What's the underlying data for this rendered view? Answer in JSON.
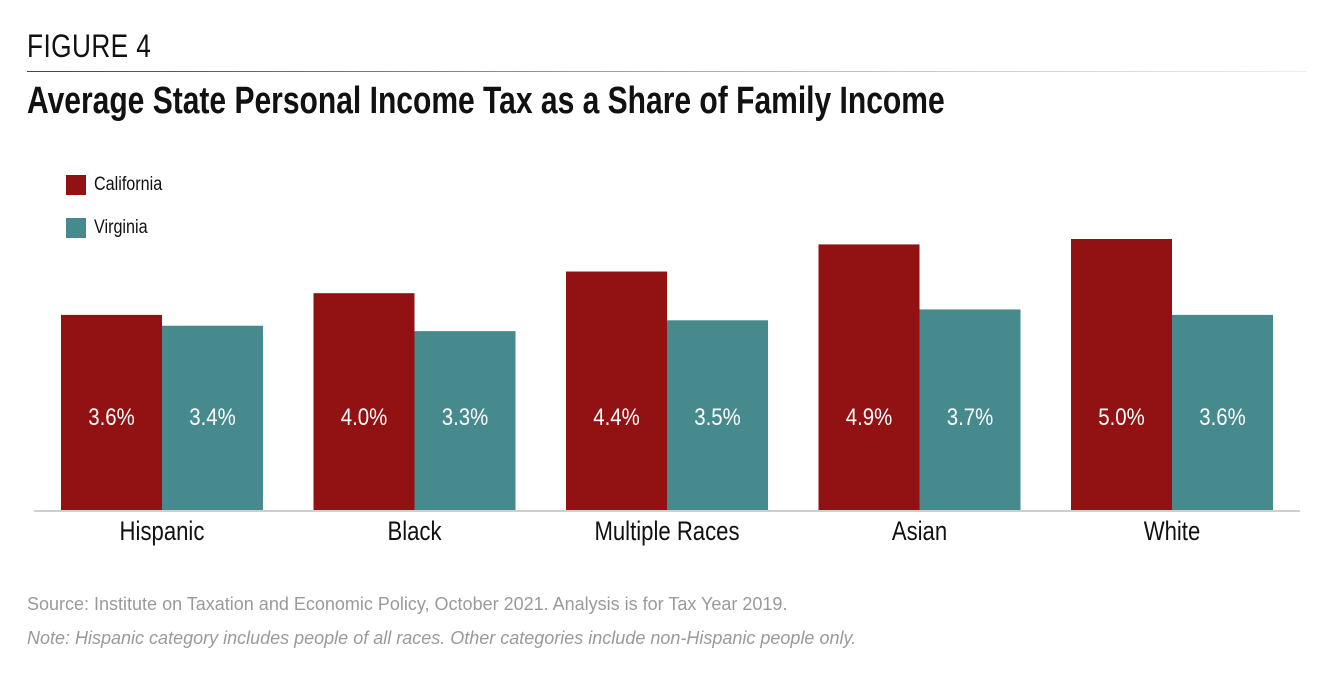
{
  "header": {
    "figure_label": "FIGURE 4",
    "title": "Average State Personal Income Tax as a Share of Family Income"
  },
  "legend": {
    "items": [
      {
        "label": "California",
        "color": "#921113"
      },
      {
        "label": "Virginia",
        "color": "#468a8e"
      }
    ]
  },
  "chart_data": {
    "type": "bar",
    "title": "Average State Personal Income Tax as a Share of Family Income",
    "categories": [
      "Hispanic",
      "Black",
      "Multiple Races",
      "Asian",
      "White"
    ],
    "series": [
      {
        "name": "California",
        "color": "#921113",
        "values": [
          3.6,
          4.0,
          4.4,
          4.9,
          5.0
        ],
        "labels": [
          "3.6%",
          "4.0%",
          "4.4%",
          "4.9%",
          "5.0%"
        ]
      },
      {
        "name": "Virginia",
        "color": "#468a8e",
        "values": [
          3.4,
          3.3,
          3.5,
          3.7,
          3.6
        ],
        "labels": [
          "3.4%",
          "3.3%",
          "3.5%",
          "3.7%",
          "3.6%"
        ]
      }
    ],
    "xlabel": "",
    "ylabel": "",
    "ylim": [
      0,
      5.0
    ],
    "grid": false,
    "legend_position": "top-left"
  },
  "footer": {
    "source": "Source: Institute on Taxation and Economic Policy, October 2021. Analysis is for Tax Year 2019.",
    "note": "Note: Hispanic category includes people of all races. Other categories include non-Hispanic people only."
  }
}
